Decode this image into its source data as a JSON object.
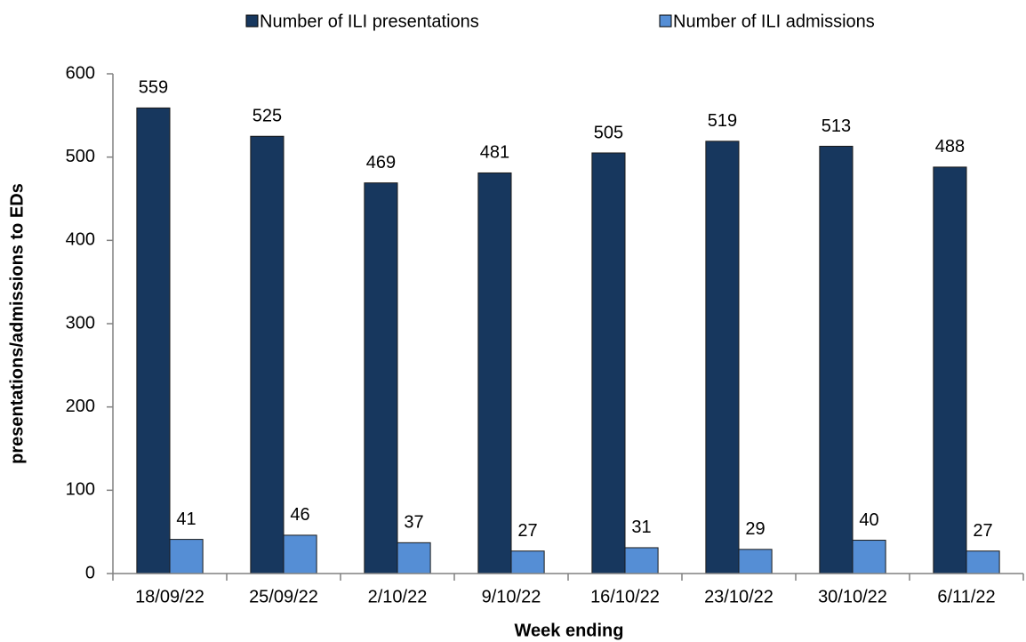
{
  "chart_data": {
    "type": "bar",
    "x_label": "Week ending",
    "y_label": "presentations/admissions to EDs",
    "categories": [
      "18/09/22",
      "25/09/22",
      "2/10/22",
      "9/10/22",
      "16/10/22",
      "23/10/22",
      "30/10/22",
      "6/11/22"
    ],
    "series": [
      {
        "name": "Number of ILI presentations",
        "color": "#17375e",
        "values": [
          559,
          525,
          469,
          481,
          505,
          519,
          513,
          488
        ]
      },
      {
        "name": "Number of ILI admissions",
        "color": "#558ed5",
        "values": [
          41,
          46,
          37,
          27,
          31,
          29,
          40,
          27
        ]
      }
    ],
    "ylim": [
      0,
      600
    ],
    "yticks": [
      0,
      100,
      200,
      300,
      400,
      500,
      600
    ],
    "grid": false,
    "legend": "top",
    "data_labels": true
  }
}
